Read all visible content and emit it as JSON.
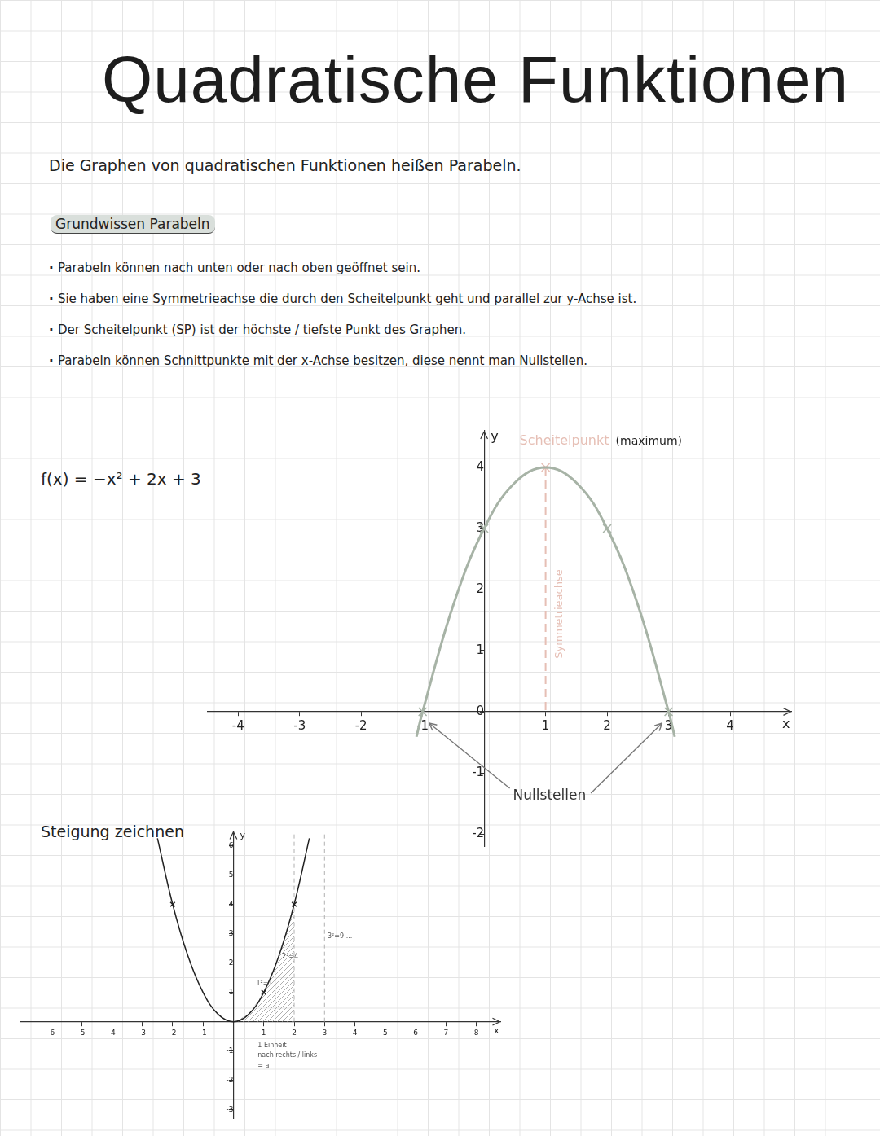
{
  "header": {
    "title": "Quadratische Funktionen"
  },
  "intro": "Die Graphen von quadratischen Funktionen heißen Parabeln.",
  "section": {
    "heading": "Grundwissen Parabeln",
    "bullets": [
      "Parabeln können nach unten oder nach oben geöffnet sein.",
      "Sie haben eine Symmetrieachse die durch den Scheitelpunkt geht und parallel zur y-Achse ist.",
      "Der Scheitelpunkt (SP) ist der höchste / tiefste Punkt des Graphen.",
      "Parabeln können Schnittpunkte mit der x-Achse besitzen, diese nennt man Nullstellen."
    ]
  },
  "chart_data": [
    {
      "type": "line",
      "title": "f(x) = −x² + 2x + 3",
      "x": [
        -1.1,
        -1,
        -0.5,
        0,
        0.5,
        1,
        1.5,
        2,
        2.5,
        3,
        3.1
      ],
      "values": [
        -0.41,
        0,
        1.75,
        3,
        3.75,
        4,
        3.75,
        3,
        1.75,
        0,
        -0.41
      ],
      "color": "#a7b3a6",
      "marker": "x",
      "marked_points": {
        "x": [
          -1,
          0,
          1,
          2,
          3
        ],
        "y": [
          0,
          3,
          4,
          3,
          0
        ]
      },
      "vertex_label": "Scheitelpunkt",
      "vertex_note": "(maximum)",
      "axis_label": "Symmetrieachse",
      "roots_label": "Nullstellen",
      "xlabel": "x",
      "ylabel": "y",
      "xlim": [
        -4.5,
        5
      ],
      "ylim": [
        -2.2,
        4.6
      ],
      "xticks": [
        -4,
        -3,
        -2,
        -1,
        1,
        2,
        3,
        4
      ],
      "yticks": [
        -2,
        -1,
        0,
        1,
        2,
        3,
        4
      ],
      "grid": false
    },
    {
      "type": "line",
      "title": "Steigung zeichnen",
      "x": [
        -2.5,
        -2,
        -1.5,
        -1,
        -0.5,
        0,
        0.5,
        1,
        1.5,
        2,
        2.5
      ],
      "values": [
        6.25,
        4,
        2.25,
        1,
        0.25,
        0,
        0.25,
        1,
        2.25,
        4,
        6.25
      ],
      "color": "#222222",
      "marker": "x",
      "marked_points": {
        "x": [
          -2,
          1,
          2
        ],
        "y": [
          4,
          1,
          4
        ]
      },
      "dashed_lines_x": [
        2,
        3
      ],
      "annotations": [
        {
          "x": 0.75,
          "y": 1.3,
          "text": "1²=1"
        },
        {
          "x": 1.6,
          "y": 2.2,
          "text": "2²=4"
        },
        {
          "x": 3.1,
          "y": 2.9,
          "text": "3²=9 ..."
        },
        {
          "x": 0.8,
          "y": -0.8,
          "text": "1 Einheit"
        },
        {
          "x": 0.8,
          "y": -1.15,
          "text": "nach rechts / links"
        },
        {
          "x": 0.8,
          "y": -1.5,
          "text": "= a"
        }
      ],
      "xlabel": "x",
      "ylabel": "y",
      "xlim": [
        -7,
        8.8
      ],
      "ylim": [
        -3.3,
        6.5
      ],
      "xticks": [
        -6,
        -5,
        -4,
        -3,
        -2,
        -1,
        1,
        2,
        3,
        4,
        5,
        6,
        7,
        8
      ],
      "yticks": [
        -3,
        -2,
        -1,
        1,
        2,
        3,
        4,
        5,
        6
      ],
      "grid": false
    }
  ]
}
